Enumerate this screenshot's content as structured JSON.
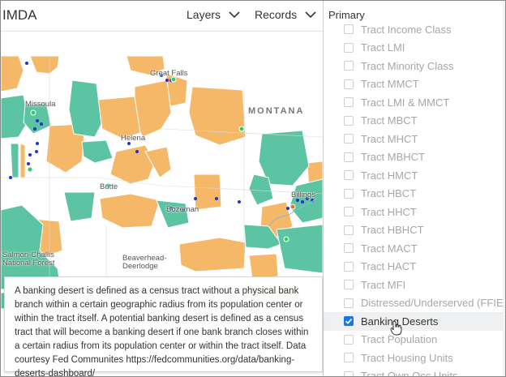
{
  "app": {
    "title": "IMDA"
  },
  "header": {
    "layers_label": "Layers",
    "records_label": "Records"
  },
  "map": {
    "state_label": "MONTANA",
    "places": {
      "great_falls": "Great Falls",
      "missoula": "Missoula",
      "helena": "Helena",
      "butte": "Butte",
      "bozeman": "Bozeman",
      "billings": "Billings",
      "salmon_line1": "Salmon-Challis",
      "salmon_line2": "National Forest",
      "beaverhead_line1": "Beaverhead-",
      "beaverhead_line2": "Deerlodge"
    },
    "colors": {
      "banking_desert": "#f5b869",
      "potential_desert": "#5cc4a2",
      "branch_dot": "#2233cc",
      "background": "#f2f2f0"
    }
  },
  "info": {
    "text": "A banking desert is defined as a census tract without a physical bank branch within a certain geographic radius from its population center or within the tract itself. A potential banking desert is defined as a census tract that will become a banking desert if one bank branch closes within a certain radius from its population center or within the tract itself. Data courtesy Fed Communites https://fedcommunities.org/data/banking-deserts-dashboard/"
  },
  "panel": {
    "heading": "Primary",
    "items": [
      {
        "label": "Tract Income Class",
        "checked": false
      },
      {
        "label": "Tract LMI",
        "checked": false
      },
      {
        "label": "Tract Minority Class",
        "checked": false
      },
      {
        "label": "Tract MMCT",
        "checked": false
      },
      {
        "label": "Tract LMI & MMCT",
        "checked": false
      },
      {
        "label": "Tract MBCT",
        "checked": false
      },
      {
        "label": "Tract MHCT",
        "checked": false
      },
      {
        "label": "Tract MBHCT",
        "checked": false
      },
      {
        "label": "Tract HMCT",
        "checked": false
      },
      {
        "label": "Tract HBCT",
        "checked": false
      },
      {
        "label": "Tract HHCT",
        "checked": false
      },
      {
        "label": "Tract HBHCT",
        "checked": false
      },
      {
        "label": "Tract MACT",
        "checked": false
      },
      {
        "label": "Tract HACT",
        "checked": false
      },
      {
        "label": "Tract MFI",
        "checked": false
      },
      {
        "label": "Distressed/Underserved (FFIEC)",
        "checked": false
      },
      {
        "label": "Banking Deserts",
        "checked": true
      },
      {
        "label": "Tract Population",
        "checked": false
      },
      {
        "label": "Tract Housing Units",
        "checked": false
      },
      {
        "label": "Tract Own Occ Units",
        "checked": false
      }
    ]
  }
}
